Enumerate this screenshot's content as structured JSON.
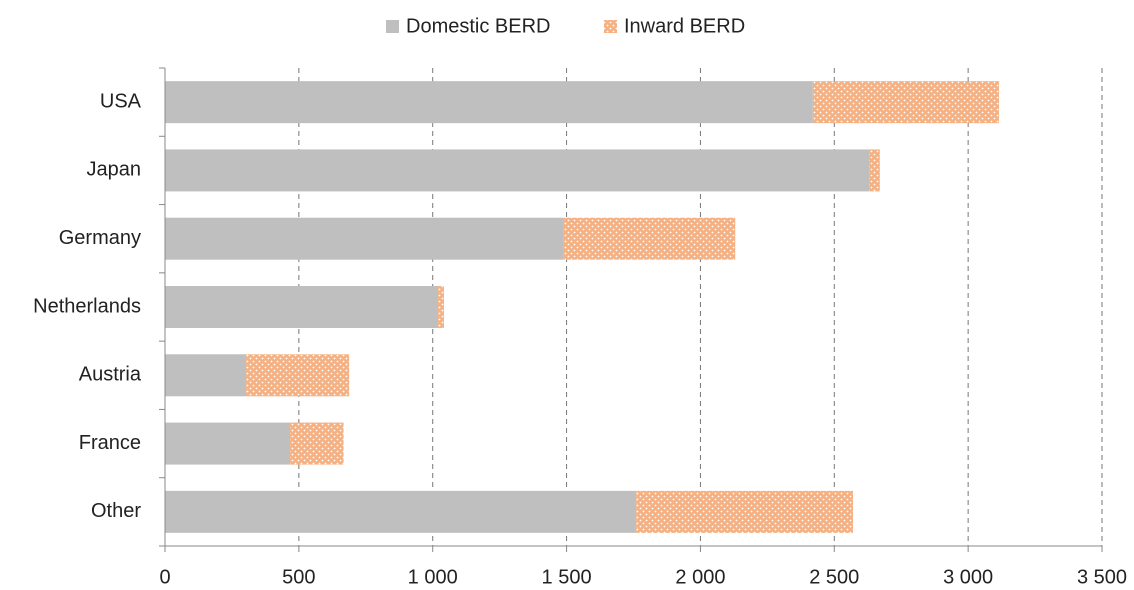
{
  "chart_data": {
    "type": "stacked_barh",
    "categories": [
      "USA",
      "Japan",
      "Germany",
      "Netherlands",
      "Austria",
      "France",
      "Other"
    ],
    "series": [
      {
        "name": "Domestic BERD",
        "color": "#bfbfbf",
        "values": [
          2420,
          2630,
          1490,
          1020,
          303,
          467,
          1760
        ]
      },
      {
        "name": "Inward BERD",
        "color": "#f4b183",
        "pattern": "dotted",
        "values": [
          695,
          40,
          640,
          22,
          385,
          200,
          810
        ]
      }
    ],
    "xlim": [
      0,
      3500
    ],
    "xticks": [
      0,
      500,
      {
        "value": 1000,
        "label": "1 000"
      },
      {
        "value": 1500,
        "label": "1 500"
      },
      {
        "value": 2000,
        "label": "2 000"
      },
      {
        "value": 2500,
        "label": "2 500"
      },
      {
        "value": 3000,
        "label": "3 000"
      },
      {
        "value": 3500,
        "label": "3 500"
      }
    ],
    "grid": true,
    "legend": "top"
  }
}
